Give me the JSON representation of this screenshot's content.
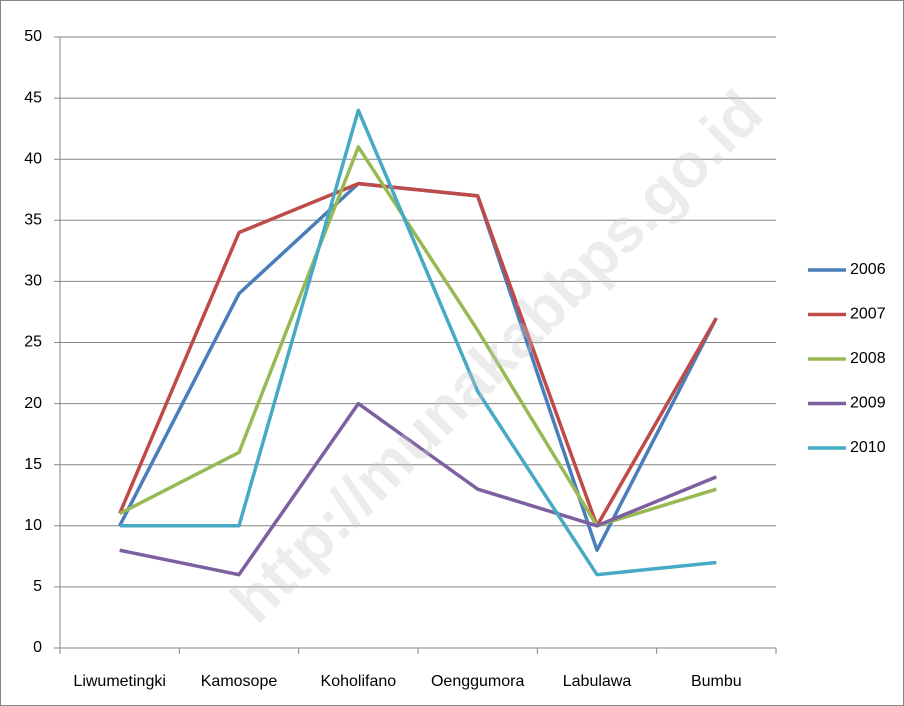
{
  "chart_data": {
    "type": "line",
    "categories": [
      "Liwumetingki",
      "Kamosope",
      "Koholifano",
      "Oenggumora",
      "Labulawa",
      "Bumbu"
    ],
    "series": [
      {
        "name": "2006",
        "color": "#4a7ebb",
        "values": [
          10,
          29,
          38,
          37,
          8,
          27
        ]
      },
      {
        "name": "2007",
        "color": "#be4b48",
        "values": [
          11,
          34,
          38,
          37,
          10,
          27
        ]
      },
      {
        "name": "2008",
        "color": "#98b954",
        "values": [
          11,
          16,
          41,
          26,
          10,
          13
        ]
      },
      {
        "name": "2009",
        "color": "#7d60a0",
        "values": [
          8,
          6,
          20,
          13,
          10,
          14
        ]
      },
      {
        "name": "2010",
        "color": "#46aac5",
        "values": [
          10,
          10,
          44,
          21,
          6,
          7
        ]
      }
    ],
    "ylim": [
      0,
      50
    ],
    "yticks": [
      0,
      5,
      10,
      15,
      20,
      25,
      30,
      35,
      40,
      45,
      50
    ],
    "grid": true,
    "legend": "right",
    "watermark": "http://munakabbps.go.id"
  }
}
